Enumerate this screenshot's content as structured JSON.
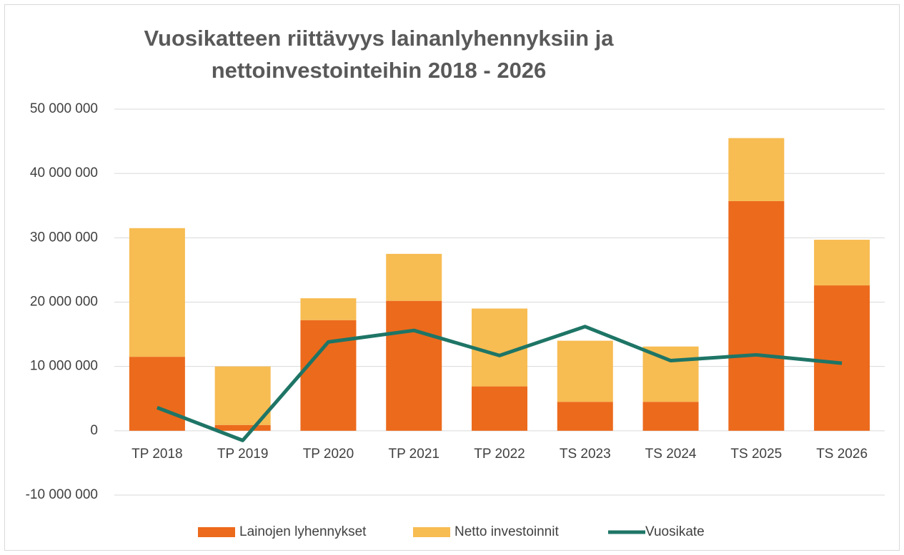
{
  "chart_data": {
    "type": "bar",
    "title": [
      "Vuosikatteen riittävyys lainanlyhennyksiin ja",
      "nettoinvestointeihin 2018 - 2026"
    ],
    "categories": [
      "TP 2018",
      "TP 2019",
      "TP 2020",
      "TP 2021",
      "TP 2022",
      "TS 2023",
      "TS 2024",
      "TS 2025",
      "TS 2026"
    ],
    "stacked": true,
    "series": [
      {
        "name": "Lainojen lyhennykset",
        "type": "bar",
        "color": "#ec6a1c",
        "values": [
          11500000,
          900000,
          17200000,
          20200000,
          6900000,
          4500000,
          4500000,
          35700000,
          22600000
        ]
      },
      {
        "name": "Netto investoinnit",
        "type": "bar",
        "color": "#f7bc52",
        "values": [
          20000000,
          9100000,
          3400000,
          7300000,
          12100000,
          9500000,
          8600000,
          9800000,
          7100000
        ]
      },
      {
        "name": "Vuosikate",
        "type": "line",
        "color": "#1e7566",
        "values": [
          3600000,
          -1500000,
          13800000,
          15600000,
          11700000,
          16200000,
          10900000,
          11800000,
          10500000
        ]
      }
    ],
    "ylim": [
      -10000000,
      50000000
    ],
    "yticks": [
      {
        "value": -10000000,
        "label": "-10 000 000"
      },
      0,
      {
        "value": 10000000,
        "label": "10 000 000"
      },
      {
        "value": 20000000,
        "label": "20 000 000"
      },
      {
        "value": 30000000,
        "label": "30 000 000"
      },
      {
        "value": 40000000,
        "label": "40 000 000"
      },
      {
        "value": 50000000,
        "label": "50 000 000"
      }
    ],
    "grid": true,
    "legend": "bottom"
  }
}
